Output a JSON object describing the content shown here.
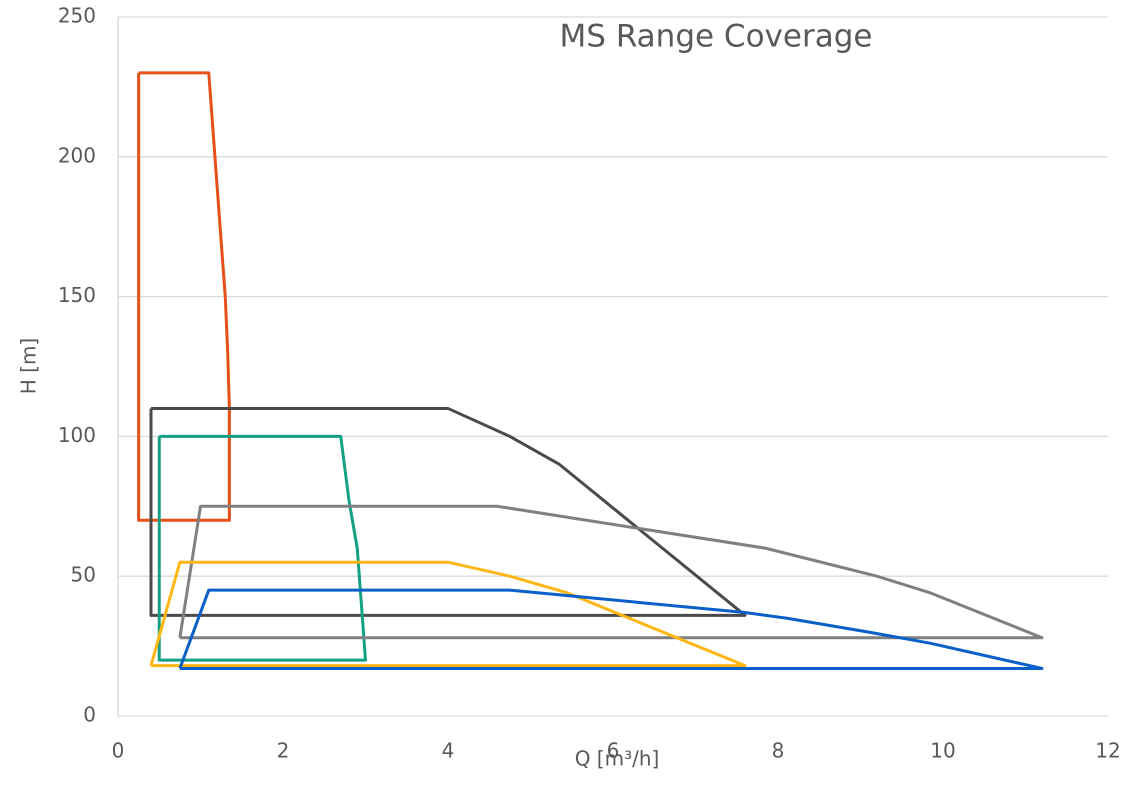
{
  "chart_data": {
    "type": "line",
    "title": "MS Range Coverage",
    "x_label": "Q [m³/h]",
    "y_label": "H [m]",
    "xlim": [
      0,
      12
    ],
    "xticks": [
      0,
      2,
      4,
      6,
      8,
      10,
      12
    ],
    "ylim": [
      0,
      250
    ],
    "yticks": [
      0,
      50,
      100,
      150,
      200,
      250
    ],
    "grid": true,
    "series": [
      {
        "color": "#e8501a",
        "x": [
          0.25,
          1.1,
          1.3,
          1.33,
          1.35,
          1.35,
          0.25,
          0.25
        ],
        "values": [
          230,
          230,
          150,
          130,
          110,
          70,
          70,
          230
        ]
      },
      {
        "color": "#4a4a4a",
        "x": [
          0.4,
          4,
          4.75,
          5.35,
          7.6,
          0.4,
          0.4
        ],
        "values": [
          110,
          110,
          100,
          90,
          36,
          36,
          110
        ]
      },
      {
        "color": "#12a085",
        "x": [
          0.5,
          2.7,
          2.8,
          2.9,
          2.95,
          3,
          0.5,
          0.5
        ],
        "values": [
          100,
          100,
          77,
          60,
          40,
          20,
          20,
          100
        ]
      },
      {
        "color": "#808080",
        "x": [
          0.75,
          1,
          4.6,
          7.85,
          9.2,
          9.85,
          11.2,
          0.75
        ],
        "values": [
          28,
          75,
          75,
          60,
          50,
          44,
          28,
          28
        ]
      },
      {
        "color": "#ffb612",
        "x": [
          0.4,
          0.75,
          4,
          4.75,
          5.45,
          7.6,
          0.4
        ],
        "values": [
          18,
          55,
          55,
          50,
          44,
          18,
          18
        ]
      },
      {
        "color": "#0a5fc8",
        "x": [
          0.75,
          1.1,
          4.75,
          7.6,
          8.1,
          9.1,
          9.85,
          11.2,
          0.75
        ],
        "values": [
          17,
          45,
          45,
          37,
          35,
          30,
          26,
          17,
          17
        ]
      }
    ]
  }
}
